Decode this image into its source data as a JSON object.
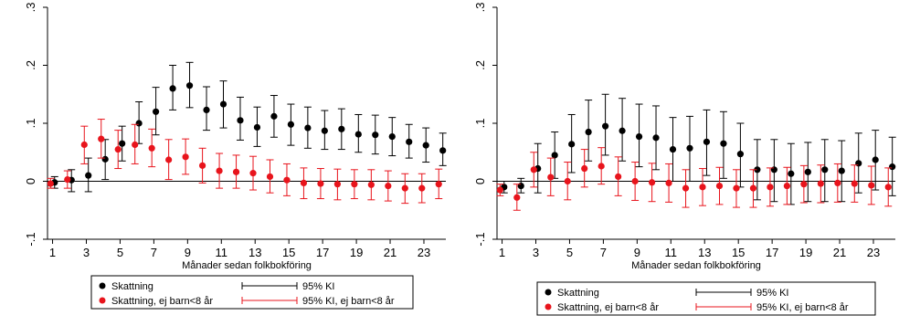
{
  "chart_data": [
    {
      "type": "scatter",
      "xlabel": "Månader sedan folkbokföring",
      "ylabel": "",
      "xlim": [
        0.7,
        24.3
      ],
      "ylim": [
        -0.1,
        0.3
      ],
      "xticks": [
        "1",
        "3",
        "5",
        "7",
        "9",
        "11",
        "13",
        "15",
        "17",
        "19",
        "21",
        "23"
      ],
      "yticks": [
        "-.1",
        "0",
        ".1",
        ".2",
        ".3"
      ],
      "ytick_values": [
        -0.1,
        0,
        0.1,
        0.2,
        0.3
      ],
      "reference_line": 0,
      "legend": {
        "placement": "bottom",
        "items": [
          "Skattning",
          "95% KI",
          "Skattning, ej barn<8 år",
          "95% KI, ej barn<8 år"
        ]
      },
      "series": [
        {
          "name": "Skattning",
          "color": "#000000",
          "x": [
            1,
            2,
            3,
            4,
            5,
            6,
            7,
            8,
            9,
            10,
            11,
            12,
            13,
            14,
            15,
            16,
            17,
            18,
            19,
            20,
            21,
            22,
            23,
            24
          ],
          "values": [
            -0.002,
            0.002,
            0.01,
            0.038,
            0.065,
            0.1,
            0.12,
            0.16,
            0.165,
            0.123,
            0.133,
            0.105,
            0.093,
            0.112,
            0.098,
            0.092,
            0.087,
            0.09,
            0.081,
            0.08,
            0.077,
            0.068,
            0.062,
            0.053
          ],
          "ci_low": [
            -0.012,
            -0.018,
            -0.018,
            0.003,
            0.035,
            0.065,
            0.08,
            0.123,
            0.127,
            0.088,
            0.092,
            0.071,
            0.06,
            0.076,
            0.062,
            0.057,
            0.055,
            0.055,
            0.05,
            0.047,
            0.044,
            0.04,
            0.033,
            0.027
          ],
          "ci_high": [
            0.008,
            0.02,
            0.04,
            0.072,
            0.095,
            0.137,
            0.162,
            0.2,
            0.205,
            0.163,
            0.173,
            0.145,
            0.128,
            0.148,
            0.133,
            0.128,
            0.122,
            0.125,
            0.115,
            0.114,
            0.11,
            0.098,
            0.092,
            0.083
          ]
        },
        {
          "name": "Skattning, ej barn<8 år",
          "color": "#e8141c",
          "x": [
            1,
            2,
            3,
            4,
            5,
            6,
            7,
            8,
            9,
            10,
            11,
            12,
            13,
            14,
            15,
            16,
            17,
            18,
            19,
            20,
            21,
            22,
            23,
            24
          ],
          "values": [
            -0.004,
            0.003,
            0.063,
            0.073,
            0.055,
            0.063,
            0.057,
            0.037,
            0.042,
            0.027,
            0.018,
            0.016,
            0.014,
            0.008,
            0.002,
            -0.003,
            -0.004,
            -0.005,
            -0.005,
            -0.006,
            -0.008,
            -0.012,
            -0.012,
            -0.005
          ],
          "ci_low": [
            -0.012,
            -0.012,
            0.03,
            0.04,
            0.022,
            0.03,
            0.025,
            0.003,
            0.012,
            -0.003,
            -0.012,
            -0.012,
            -0.015,
            -0.02,
            -0.025,
            -0.03,
            -0.03,
            -0.032,
            -0.03,
            -0.032,
            -0.034,
            -0.038,
            -0.037,
            -0.03
          ],
          "ci_high": [
            0.005,
            0.018,
            0.095,
            0.107,
            0.088,
            0.098,
            0.09,
            0.072,
            0.073,
            0.057,
            0.048,
            0.045,
            0.043,
            0.037,
            0.03,
            0.023,
            0.022,
            0.021,
            0.02,
            0.02,
            0.018,
            0.013,
            0.013,
            0.021
          ]
        }
      ]
    },
    {
      "type": "scatter",
      "xlabel": "Månader sedan folkbokföring",
      "ylabel": "",
      "xlim": [
        0.7,
        24.3
      ],
      "ylim": [
        -0.1,
        0.3
      ],
      "xticks": [
        "1",
        "3",
        "5",
        "7",
        "9",
        "11",
        "13",
        "15",
        "17",
        "19",
        "21",
        "23"
      ],
      "yticks": [
        "-.1",
        "0",
        ".1",
        ".2",
        ".3"
      ],
      "ytick_values": [
        -0.1,
        0,
        0.1,
        0.2,
        0.3
      ],
      "reference_line": 0,
      "legend": {
        "placement": "bottom",
        "items": [
          "Skattning",
          "95% KI",
          "Skattning, ej barn<8 år",
          "95% KI, ej barn<8 år"
        ]
      },
      "series": [
        {
          "name": "Skattning",
          "color": "#000000",
          "x": [
            1,
            2,
            3,
            4,
            5,
            6,
            7,
            8,
            9,
            10,
            11,
            12,
            13,
            14,
            15,
            16,
            17,
            18,
            19,
            20,
            21,
            22,
            23,
            24
          ],
          "values": [
            -0.01,
            -0.008,
            0.022,
            0.045,
            0.064,
            0.085,
            0.095,
            0.087,
            0.077,
            0.075,
            0.055,
            0.057,
            0.068,
            0.065,
            0.047,
            0.02,
            0.02,
            0.013,
            0.016,
            0.02,
            0.018,
            0.031,
            0.037,
            0.025
          ],
          "ci_low": [
            -0.02,
            -0.02,
            -0.02,
            0.005,
            0.015,
            0.035,
            0.045,
            0.035,
            0.025,
            0.02,
            0.0,
            0.0,
            0.01,
            0.005,
            -0.01,
            -0.032,
            -0.035,
            -0.04,
            -0.035,
            -0.035,
            -0.035,
            -0.02,
            -0.015,
            -0.025
          ],
          "ci_high": [
            0.0,
            0.005,
            0.065,
            0.085,
            0.115,
            0.14,
            0.15,
            0.143,
            0.133,
            0.13,
            0.11,
            0.112,
            0.123,
            0.12,
            0.1,
            0.072,
            0.072,
            0.065,
            0.067,
            0.072,
            0.07,
            0.083,
            0.088,
            0.076
          ]
        },
        {
          "name": "Skattning, ej barn<8 år",
          "color": "#e8141c",
          "x": [
            1,
            2,
            3,
            4,
            5,
            6,
            7,
            8,
            9,
            10,
            11,
            12,
            13,
            14,
            15,
            16,
            17,
            18,
            19,
            20,
            21,
            22,
            23,
            24
          ],
          "values": [
            -0.015,
            -0.028,
            0.02,
            0.007,
            0.0,
            0.022,
            0.026,
            0.008,
            0.0,
            -0.002,
            -0.003,
            -0.012,
            -0.01,
            -0.008,
            -0.012,
            -0.012,
            -0.01,
            -0.008,
            -0.005,
            -0.004,
            -0.003,
            -0.004,
            -0.007,
            -0.01
          ],
          "ci_low": [
            -0.025,
            -0.05,
            -0.01,
            -0.025,
            -0.032,
            -0.01,
            -0.005,
            -0.025,
            -0.033,
            -0.035,
            -0.036,
            -0.045,
            -0.042,
            -0.04,
            -0.045,
            -0.045,
            -0.043,
            -0.04,
            -0.037,
            -0.037,
            -0.036,
            -0.036,
            -0.04,
            -0.043
          ],
          "ci_high": [
            -0.005,
            -0.005,
            0.05,
            0.04,
            0.033,
            0.055,
            0.058,
            0.042,
            0.033,
            0.031,
            0.03,
            0.02,
            0.022,
            0.024,
            0.02,
            0.02,
            0.023,
            0.024,
            0.027,
            0.028,
            0.03,
            0.028,
            0.026,
            0.023
          ]
        }
      ]
    }
  ]
}
